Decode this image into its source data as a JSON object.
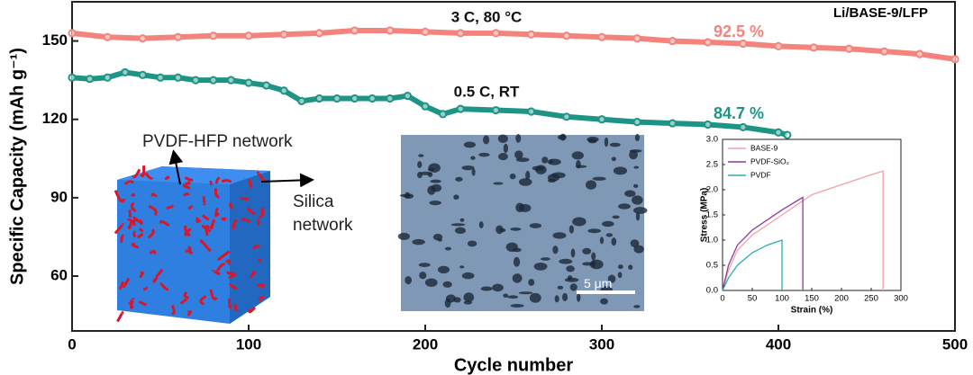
{
  "chart_data": [
    {
      "type": "line",
      "title": "Li/BASE-9/LFP",
      "x_label": "Cycle number",
      "y_label": "Specific Capacity (mAh g⁻¹)",
      "xlim": [
        0,
        500
      ],
      "xticks": [
        0,
        100,
        200,
        300,
        400,
        500
      ],
      "ylim": [
        39,
        165
      ],
      "yticks": [
        60,
        90,
        120,
        150
      ],
      "markers": true,
      "series": [
        {
          "name": "3 C, 80 °C",
          "color": "#f4837d",
          "end_label": "92.5 %",
          "x": [
            0,
            20,
            40,
            60,
            80,
            100,
            120,
            140,
            160,
            180,
            200,
            220,
            240,
            260,
            280,
            300,
            320,
            340,
            360,
            380,
            400,
            420,
            440,
            460,
            480,
            500
          ],
          "values": [
            153,
            151.5,
            151,
            151.5,
            152,
            152,
            152.5,
            153,
            154,
            154,
            153.5,
            153,
            153,
            152.5,
            152,
            151.5,
            151,
            150,
            149.5,
            149,
            148,
            147.5,
            147,
            146,
            145,
            143
          ]
        },
        {
          "name": "0.5 C, RT",
          "color": "#1e9486",
          "end_label": "84.7 %",
          "x": [
            0,
            10,
            20,
            30,
            40,
            50,
            60,
            70,
            80,
            90,
            100,
            110,
            120,
            130,
            140,
            150,
            160,
            170,
            180,
            190,
            200,
            210,
            220,
            240,
            260,
            280,
            300,
            320,
            340,
            360,
            380,
            400,
            405
          ],
          "values": [
            136,
            135.5,
            136,
            138,
            137,
            136,
            136,
            135,
            135,
            135,
            134,
            133,
            131,
            127,
            128,
            128,
            128,
            128,
            128,
            129,
            125,
            122,
            124,
            123.5,
            123,
            121,
            120,
            119,
            118.5,
            118,
            117,
            115,
            114
          ]
        }
      ],
      "annotations": [
        "PVDF-HFP network",
        "Silica network",
        "5 μm"
      ]
    },
    {
      "type": "line",
      "x_label": "Strain (%)",
      "y_label": "Stress (MPa)",
      "legend": "upper left",
      "xlim": [
        0,
        300
      ],
      "xticks": [
        0,
        50,
        100,
        150,
        200,
        250,
        300
      ],
      "ylim": [
        0,
        3
      ],
      "yticks": [
        {
          "value": 0,
          "label": "0.0"
        },
        0.5,
        {
          "value": 1,
          "label": "1.0"
        },
        1.5,
        {
          "value": 2,
          "label": "2.0"
        },
        2.5,
        {
          "value": 3,
          "label": "3.0"
        }
      ],
      "series": [
        {
          "name": "BASE-9",
          "color": "#f4a0a8",
          "x": [
            0,
            10,
            25,
            50,
            100,
            150,
            200,
            250,
            270,
            270
          ],
          "values": [
            0,
            0.4,
            0.8,
            1.1,
            1.5,
            1.9,
            2.1,
            2.3,
            2.37,
            0
          ]
        },
        {
          "name": "PVDF-SiO₂",
          "color": "#8e3c95",
          "x": [
            0,
            10,
            25,
            50,
            100,
            135,
            135
          ],
          "values": [
            0,
            0.5,
            0.9,
            1.2,
            1.6,
            1.85,
            0
          ]
        },
        {
          "name": "PVDF",
          "color": "#2ab0a8",
          "x": [
            0,
            10,
            25,
            50,
            75,
            100,
            100
          ],
          "values": [
            0,
            0.25,
            0.5,
            0.75,
            0.9,
            1.0,
            0
          ]
        }
      ]
    }
  ]
}
